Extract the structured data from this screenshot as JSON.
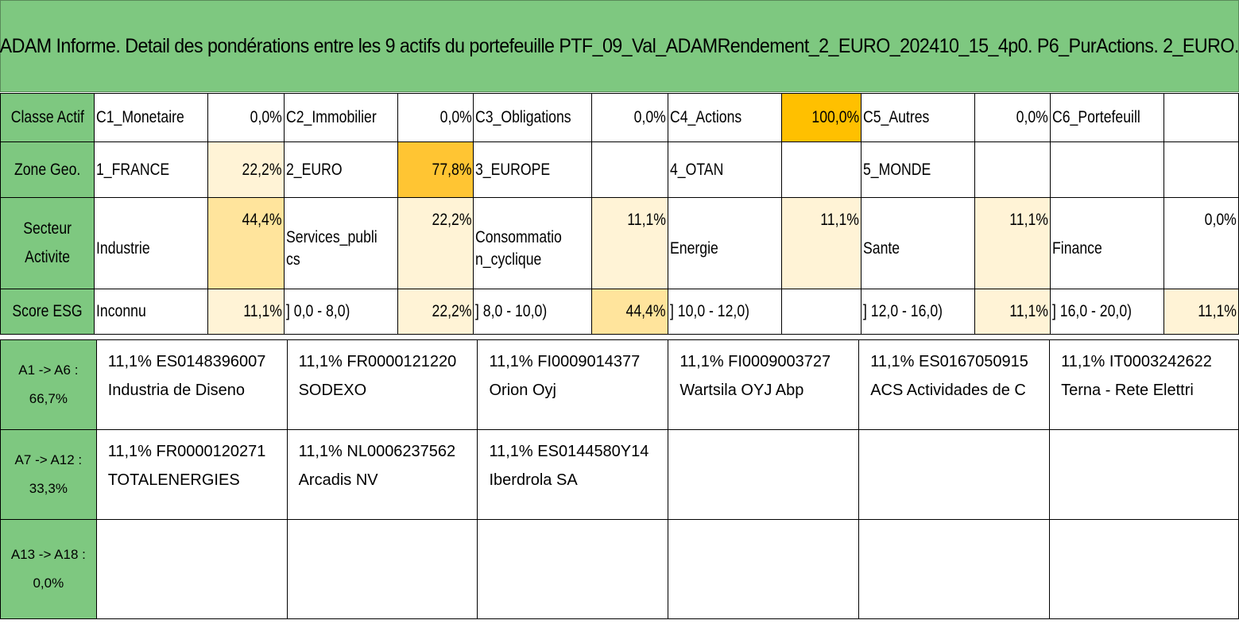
{
  "title": "ADAM Informe. Detail des pondérations entre les 9 actifs du portefeuille PTF_09_Val_ADAMRendement_2_EURO_202410_15_4p0. P6_PurActions. 2_EURO.",
  "colors": {
    "header_green": "#7ec880",
    "orange": "#ffc000",
    "light": "#fff3d6",
    "mid": "#ffe49c",
    "strong": "#ffd24d",
    "dark": "#ffc533"
  },
  "rows": [
    {
      "label": "Classe Actif",
      "cells": [
        {
          "name": "C1_Monetaire",
          "value": "0,0%",
          "shade": ""
        },
        {
          "name": "C2_Immobilier",
          "value": "0,0%",
          "shade": ""
        },
        {
          "name": "C3_Obligations",
          "value": "0,0%",
          "shade": ""
        },
        {
          "name": "C4_Actions",
          "value": "100,0%",
          "shade": "orange"
        },
        {
          "name": "C5_Autres",
          "value": "0,0%",
          "shade": ""
        },
        {
          "name": "C6_Portefeuill",
          "value": "",
          "shade": ""
        }
      ]
    },
    {
      "label": "Zone Geo.",
      "cells": [
        {
          "name": "1_FRANCE",
          "value": "22,2%",
          "shade": "light"
        },
        {
          "name": "2_EURO",
          "value": "77,8%",
          "shade": "dark"
        },
        {
          "name": "3_EUROPE",
          "value": "",
          "shade": ""
        },
        {
          "name": "4_OTAN",
          "value": "",
          "shade": ""
        },
        {
          "name": "5_MONDE",
          "value": "",
          "shade": ""
        },
        {
          "name": "",
          "value": "",
          "shade": ""
        }
      ]
    },
    {
      "label": "Secteur Activite",
      "cells": [
        {
          "name": "Industrie",
          "value": "44,4%",
          "shade": "mid"
        },
        {
          "name": "Services_publics",
          "value": "22,2%",
          "shade": "light"
        },
        {
          "name": "Consommation_cyclique",
          "value": "11,1%",
          "shade": "light"
        },
        {
          "name": "Energie",
          "value": "11,1%",
          "shade": "light"
        },
        {
          "name": "Sante",
          "value": "11,1%",
          "shade": "light"
        },
        {
          "name": "Finance",
          "value": "0,0%",
          "shade": ""
        }
      ]
    },
    {
      "label": "Score ESG",
      "cells": [
        {
          "name": "Inconnu",
          "value": "11,1%",
          "shade": "light"
        },
        {
          "name": "] 0,0 - 8,0)",
          "value": "22,2%",
          "shade": "light"
        },
        {
          "name": "] 8,0 - 10,0)",
          "value": "44,4%",
          "shade": "mid"
        },
        {
          "name": "] 10,0 - 12,0)",
          "value": "",
          "shade": ""
        },
        {
          "name": "] 12,0 - 16,0)",
          "value": "11,1%",
          "shade": "light"
        },
        {
          "name": "] 16,0 - 20,0)",
          "value": "11,1%",
          "shade": "light"
        }
      ]
    }
  ],
  "asset_rows": [
    {
      "label_line1": "A1 -> A6 :",
      "label_line2": "66,7%",
      "assets": [
        {
          "line1": "11,1% ES0148396007",
          "line2": "Industria de Diseno"
        },
        {
          "line1": "11,1% FR0000121220",
          "line2": "SODEXO"
        },
        {
          "line1": "11,1% FI0009014377",
          "line2": "Orion Oyj"
        },
        {
          "line1": "11,1% FI0009003727",
          "line2": "Wartsila OYJ Abp"
        },
        {
          "line1": "11,1% ES0167050915",
          "line2": "ACS Actividades de C"
        },
        {
          "line1": "11,1% IT0003242622",
          "line2": "Terna - Rete Elettri"
        }
      ]
    },
    {
      "label_line1": "A7 -> A12 :",
      "label_line2": "33,3%",
      "assets": [
        {
          "line1": "11,1% FR0000120271",
          "line2": "TOTALENERGIES"
        },
        {
          "line1": "11,1% NL0006237562",
          "line2": "Arcadis NV"
        },
        {
          "line1": "11,1% ES0144580Y14",
          "line2": "Iberdrola SA"
        },
        {
          "line1": "",
          "line2": ""
        },
        {
          "line1": "",
          "line2": ""
        },
        {
          "line1": "",
          "line2": ""
        }
      ]
    },
    {
      "label_line1": "A13 -> A18 :",
      "label_line2": "0,0%",
      "assets": [
        {
          "line1": "",
          "line2": ""
        },
        {
          "line1": "",
          "line2": ""
        },
        {
          "line1": "",
          "line2": ""
        },
        {
          "line1": "",
          "line2": ""
        },
        {
          "line1": "",
          "line2": ""
        },
        {
          "line1": "",
          "line2": ""
        }
      ]
    }
  ]
}
